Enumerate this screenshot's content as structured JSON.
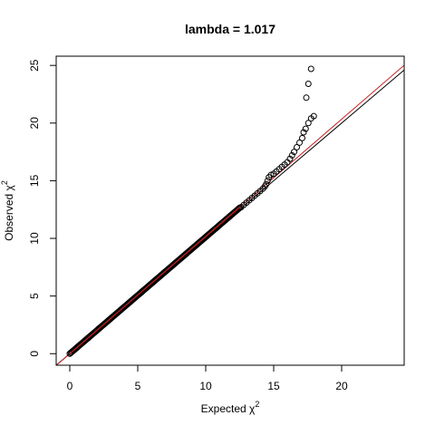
{
  "chart_data": {
    "type": "scatter",
    "title": "lambda = 1.017",
    "xlabel": {
      "text": "Expected",
      "symbol": "χ",
      "sup": "2"
    },
    "ylabel": {
      "text": "Observed",
      "symbol": "χ",
      "sup": "2"
    },
    "xlim": [
      -1,
      24.6
    ],
    "ylim": [
      -1,
      25.8
    ],
    "x_ticks": [
      0,
      5,
      10,
      15,
      20
    ],
    "y_ticks": [
      0,
      5,
      10,
      15,
      20,
      25
    ],
    "grid": false,
    "legend": "none",
    "reference_lines": [
      {
        "name": "",
        "slope": 1.0,
        "intercept": 0,
        "color": "#000000"
      },
      {
        "name": "",
        "slope": 1.017,
        "intercept": 0,
        "color": "#cc2222"
      }
    ],
    "points_color": "#000000",
    "dense_points": {
      "x_start": 0,
      "x_end": 12.5,
      "count": 160
    },
    "tail_points": [
      [
        12.6,
        12.7
      ],
      [
        12.8,
        12.9
      ],
      [
        13.0,
        13.1
      ],
      [
        13.2,
        13.3
      ],
      [
        13.4,
        13.5
      ],
      [
        13.6,
        13.7
      ],
      [
        13.8,
        13.9
      ],
      [
        14.0,
        14.1
      ],
      [
        14.2,
        14.3
      ],
      [
        14.35,
        14.5
      ],
      [
        14.45,
        14.7
      ],
      [
        14.55,
        15.0
      ],
      [
        14.65,
        15.3
      ],
      [
        14.8,
        15.5
      ],
      [
        15.0,
        15.6
      ],
      [
        15.2,
        15.8
      ],
      [
        15.4,
        16.0
      ],
      [
        15.6,
        16.2
      ],
      [
        15.8,
        16.4
      ],
      [
        16.0,
        16.6
      ],
      [
        16.2,
        16.9
      ],
      [
        16.35,
        17.2
      ],
      [
        16.5,
        17.5
      ],
      [
        16.7,
        17.9
      ],
      [
        16.9,
        18.3
      ],
      [
        17.1,
        18.7
      ],
      [
        17.2,
        19.2
      ],
      [
        17.35,
        19.5
      ],
      [
        17.55,
        20.0
      ],
      [
        17.75,
        20.4
      ],
      [
        17.95,
        20.6
      ],
      [
        17.4,
        22.2
      ],
      [
        17.55,
        23.4
      ],
      [
        17.75,
        24.7
      ]
    ]
  }
}
